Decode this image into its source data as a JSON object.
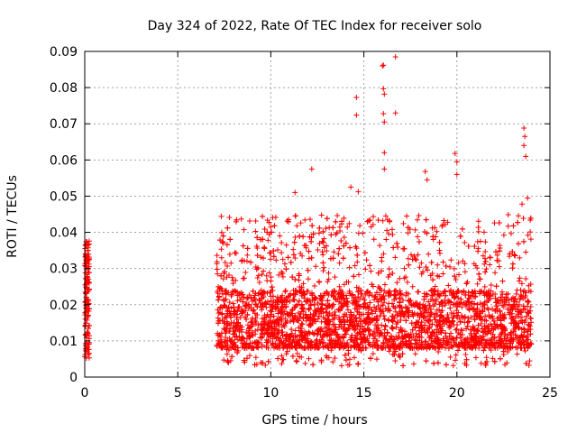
{
  "chart_data": {
    "type": "scatter",
    "title": "Day 324 of 2022, Rate Of TEC Index for receiver solo",
    "xlabel": "GPS time / hours",
    "ylabel": "ROTI / TECUs",
    "xlim": [
      0,
      25
    ],
    "ylim": [
      0,
      0.09
    ],
    "xticks": [
      0,
      5,
      10,
      15,
      20,
      25
    ],
    "yticks": [
      0,
      0.01,
      0.02,
      0.03,
      0.04,
      0.05,
      0.06,
      0.07,
      0.08,
      0.09
    ],
    "grid": true,
    "marker": "+",
    "color": "#ff0000",
    "series": [
      {
        "name": "ROTI",
        "segments": [
          {
            "x_range": [
              0.0,
              0.25
            ],
            "y_base": [
              0.005,
              0.038
            ]
          },
          {
            "x_range": [
              7.1,
              24.0
            ],
            "y_base": [
              0.003,
              0.045
            ]
          }
        ],
        "notable_points": [
          {
            "x": 11.3,
            "y": 0.051
          },
          {
            "x": 12.2,
            "y": 0.0575
          },
          {
            "x": 14.3,
            "y": 0.0525
          },
          {
            "x": 14.6,
            "y": 0.0773
          },
          {
            "x": 14.6,
            "y": 0.0724
          },
          {
            "x": 14.7,
            "y": 0.0512
          },
          {
            "x": 16.0,
            "y": 0.086
          },
          {
            "x": 16.05,
            "y": 0.0862
          },
          {
            "x": 16.05,
            "y": 0.0797
          },
          {
            "x": 16.1,
            "y": 0.0782
          },
          {
            "x": 16.05,
            "y": 0.0728
          },
          {
            "x": 16.1,
            "y": 0.0705
          },
          {
            "x": 16.1,
            "y": 0.062
          },
          {
            "x": 16.1,
            "y": 0.0575
          },
          {
            "x": 16.7,
            "y": 0.0885
          },
          {
            "x": 16.7,
            "y": 0.073
          },
          {
            "x": 18.3,
            "y": 0.0568
          },
          {
            "x": 18.4,
            "y": 0.0545
          },
          {
            "x": 19.9,
            "y": 0.0618
          },
          {
            "x": 20.0,
            "y": 0.0595
          },
          {
            "x": 20.0,
            "y": 0.056
          },
          {
            "x": 23.6,
            "y": 0.0688
          },
          {
            "x": 23.65,
            "y": 0.0665
          },
          {
            "x": 23.6,
            "y": 0.064
          },
          {
            "x": 23.7,
            "y": 0.061
          },
          {
            "x": 23.5,
            "y": 0.0478
          },
          {
            "x": 23.8,
            "y": 0.0495
          }
        ]
      }
    ]
  }
}
